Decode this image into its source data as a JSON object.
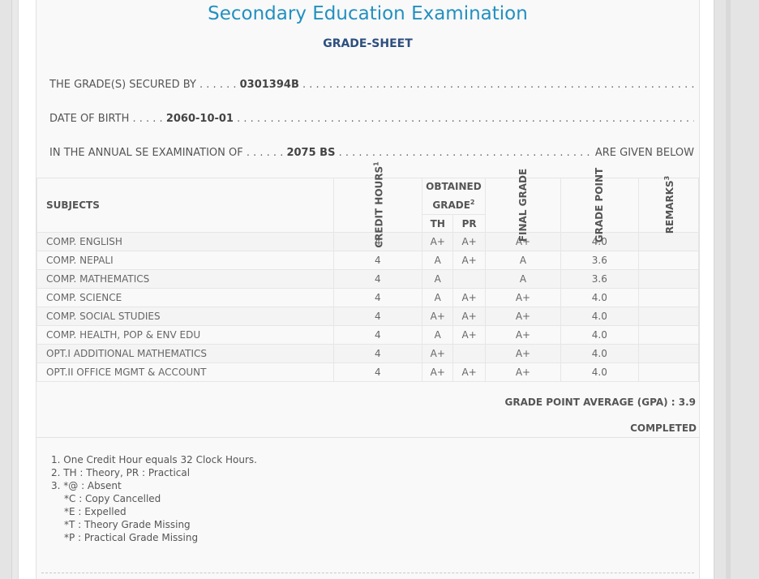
{
  "title": "Secondary Education Examination",
  "subtitle": "GRADE-SHEET",
  "info": {
    "secured_label": "THE GRADE(S) SECURED BY",
    "symbol_no": "0301394B",
    "dob_label": "DATE OF BIRTH",
    "dob": "2060-10-01",
    "exam_label": "IN THE ANNUAL SE EXAMINATION OF",
    "exam_year": "2075 BS",
    "exam_tail": "ARE GIVEN BELOW"
  },
  "table": {
    "headers": {
      "subjects": "SUBJECTS",
      "credit_hours": "CREDIT HOURS",
      "credit_sup": "1",
      "obtained_grade": "OBTAINED GRADE",
      "obtained_sup": "2",
      "th": "TH",
      "pr": "PR",
      "final_grade": "FINAL GRADE",
      "grade_point": "GRADE POINT",
      "remarks": "REMARKS",
      "remarks_sup": "3"
    },
    "rows": [
      {
        "subject": "COMP. ENGLISH",
        "credit": "4",
        "th": "A+",
        "pr": "A+",
        "final": "A+",
        "gp": "4.0",
        "remarks": ""
      },
      {
        "subject": "COMP. NEPALI",
        "credit": "4",
        "th": "A",
        "pr": "A+",
        "final": "A",
        "gp": "3.6",
        "remarks": ""
      },
      {
        "subject": "COMP. MATHEMATICS",
        "credit": "4",
        "th": "A",
        "pr": "",
        "final": "A",
        "gp": "3.6",
        "remarks": ""
      },
      {
        "subject": "COMP. SCIENCE",
        "credit": "4",
        "th": "A",
        "pr": "A+",
        "final": "A+",
        "gp": "4.0",
        "remarks": ""
      },
      {
        "subject": "COMP. SOCIAL STUDIES",
        "credit": "4",
        "th": "A+",
        "pr": "A+",
        "final": "A+",
        "gp": "4.0",
        "remarks": ""
      },
      {
        "subject": "COMP. HEALTH, POP & ENV EDU",
        "credit": "4",
        "th": "A",
        "pr": "A+",
        "final": "A+",
        "gp": "4.0",
        "remarks": ""
      },
      {
        "subject": "OPT.I ADDITIONAL MATHEMATICS",
        "credit": "4",
        "th": "A+",
        "pr": "",
        "final": "A+",
        "gp": "4.0",
        "remarks": ""
      },
      {
        "subject": "OPT.II OFFICE MGMT & ACCOUNT",
        "credit": "4",
        "th": "A+",
        "pr": "A+",
        "final": "A+",
        "gp": "4.0",
        "remarks": ""
      }
    ]
  },
  "gpa_text": "GRADE POINT AVERAGE (GPA) : 3.9",
  "status": "COMPLETED",
  "notes": [
    "1. One Credit Hour equals 32 Clock Hours.",
    "2. TH : Theory, PR : Practical",
    "3. *@ : Absent",
    "*C : Copy Cancelled",
    "*E : Expelled",
    "*T : Theory Grade Missing",
    "*P : Practical Grade Missing"
  ]
}
